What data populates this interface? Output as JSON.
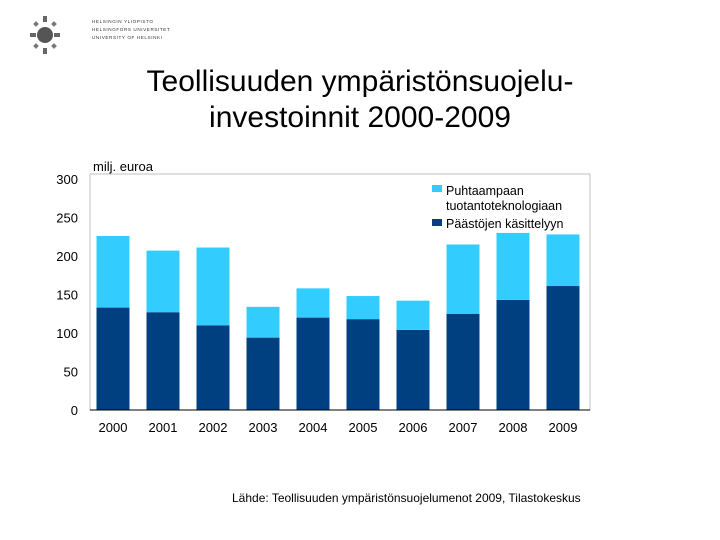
{
  "logo": {
    "lines": [
      "HELSINGIN YLIOPISTO",
      "HELSINGFORS UNIVERSITET",
      "UNIVERSITY OF HELSINKI"
    ]
  },
  "title_line1": "Teollisuuden ympäristönsuojelu-",
  "title_line2": "investoinnit 2000-2009",
  "source": "Lähde: Teollisuuden ympäristönsuojelumenot 2009, Tilastokeskus",
  "colors": {
    "bottom_series": "#004080",
    "top_series": "#33CCFF",
    "plot_background": "#ffffff",
    "axis": "#000000"
  },
  "chart_data": {
    "type": "bar",
    "stacked": true,
    "ylabel": "milj. euroa",
    "ylim": [
      0,
      300
    ],
    "yticks": [
      0,
      50,
      100,
      150,
      200,
      250,
      300
    ],
    "categories": [
      "2000",
      "2001",
      "2002",
      "2003",
      "2004",
      "2005",
      "2006",
      "2007",
      "2008",
      "2009"
    ],
    "legend_position": "top-right",
    "series": [
      {
        "name": "Päästöjen käsittelyyn",
        "color": "#004080",
        "values": [
          133,
          127,
          110,
          94,
          120,
          118,
          104,
          125,
          143,
          161
        ]
      },
      {
        "name": "Puhtaampaan tuotantoteknologiaan",
        "color": "#33CCFF",
        "values": [
          93,
          80,
          101,
          40,
          38,
          30,
          38,
          90,
          87,
          67
        ]
      }
    ]
  }
}
